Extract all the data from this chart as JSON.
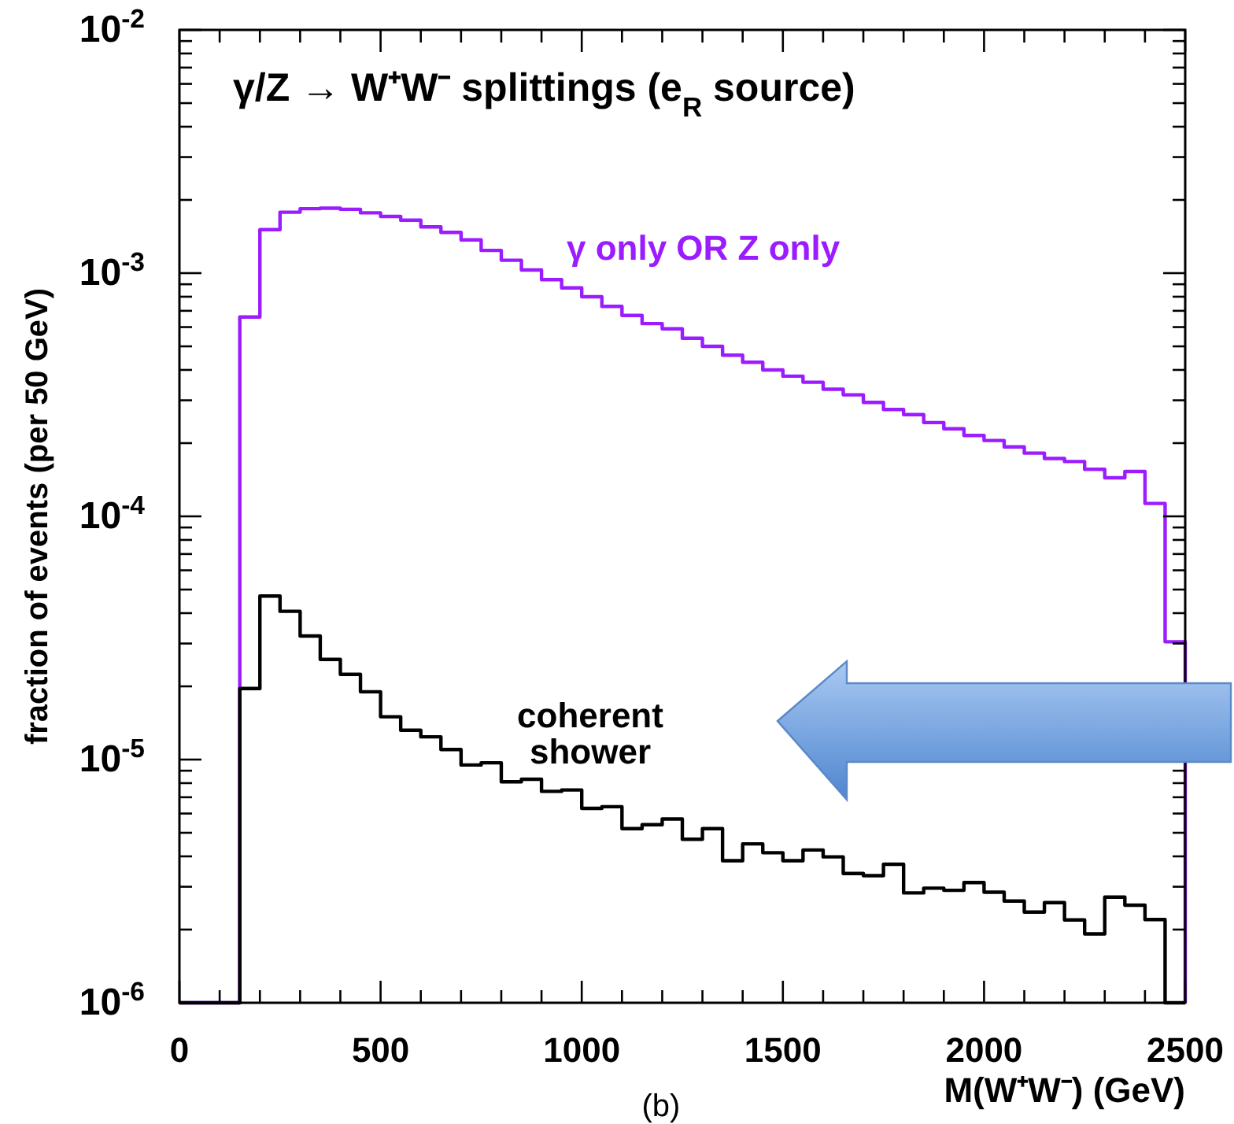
{
  "chart_data": {
    "type": "histogram",
    "title": "γ/Z → W⁺W⁻ splittings (e$_{R}$ source)",
    "xlabel": "M(W⁺W⁻)  (GeV)",
    "ylabel": "fraction of events (per 50 GeV)",
    "annotations": [
      "(b)"
    ],
    "bins": [
      0,
      50,
      100,
      150,
      200,
      250,
      300,
      350,
      400,
      450,
      500,
      550,
      600,
      650,
      700,
      750,
      800,
      850,
      900,
      950,
      1000,
      1050,
      1100,
      1150,
      1200,
      1250,
      1300,
      1350,
      1400,
      1450,
      1500,
      1550,
      1600,
      1650,
      1700,
      1750,
      1800,
      1850,
      1900,
      1950,
      2000,
      2050,
      2100,
      2150,
      2200,
      2250,
      2300,
      2350,
      2400,
      2450,
      2500
    ],
    "series": [
      {
        "name": "γ only OR Z only",
        "color": "#9b1cff",
        "values": [
          1e-06,
          1e-06,
          1e-06,
          0.00066,
          0.00151,
          0.00178,
          0.00184,
          0.00185,
          0.00183,
          0.00177,
          0.00171,
          0.00165,
          0.00155,
          0.00147,
          0.00137,
          0.00124,
          0.00113,
          0.00103,
          0.00094,
          0.00087,
          0.0008,
          0.00073,
          0.00067,
          0.00062,
          0.00059,
          0.00054,
          0.0005,
          0.00046,
          0.00043,
          0.0004,
          0.000377,
          0.000356,
          0.000333,
          0.000316,
          0.000294,
          0.000275,
          0.000262,
          0.000243,
          0.000229,
          0.000215,
          0.000205,
          0.000193,
          0.000182,
          0.000173,
          0.000168,
          0.000156,
          0.000144,
          0.000153,
          0.000113,
          3.05e-05
        ]
      },
      {
        "name": "coherent\nshower",
        "color": "#000000",
        "values": [
          1e-06,
          1e-06,
          1e-06,
          1.96e-05,
          4.7e-05,
          4.07e-05,
          3.22e-05,
          2.58e-05,
          2.24e-05,
          1.9e-05,
          1.5e-05,
          1.32e-05,
          1.24e-05,
          1.1e-05,
          9.5e-06,
          9.7e-06,
          8.1e-06,
          8.3e-06,
          7.4e-06,
          7.5e-06,
          6.3e-06,
          6.4e-06,
          5.2e-06,
          5.4e-06,
          5.7e-06,
          4.7e-06,
          5.2e-06,
          3.84e-06,
          4.5e-06,
          4.14e-06,
          3.84e-06,
          4.25e-06,
          3.98e-06,
          3.4e-06,
          3.33e-06,
          3.71e-06,
          2.83e-06,
          2.96e-06,
          2.9e-06,
          3.12e-06,
          2.85e-06,
          2.62e-06,
          2.36e-06,
          2.58e-06,
          2.19e-06,
          1.92e-06,
          2.72e-06,
          2.52e-06,
          2.2e-06,
          1e-06
        ]
      }
    ],
    "xlim": [
      0,
      2500
    ],
    "xticks": [
      0,
      {
        "value": 100,
        "label": null
      },
      {
        "value": 200,
        "label": null
      },
      {
        "value": 300,
        "label": null
      },
      {
        "value": 400,
        "label": null
      },
      500,
      {
        "value": 600,
        "label": null
      },
      {
        "value": 700,
        "label": null
      },
      {
        "value": 800,
        "label": null
      },
      {
        "value": 900,
        "label": null
      },
      1000,
      {
        "value": 1100,
        "label": null
      },
      {
        "value": 1200,
        "label": null
      },
      {
        "value": 1300,
        "label": null
      },
      {
        "value": 1400,
        "label": null
      },
      1500,
      {
        "value": 1600,
        "label": null
      },
      {
        "value": 1700,
        "label": null
      },
      {
        "value": 1800,
        "label": null
      },
      {
        "value": 1900,
        "label": null
      },
      2000,
      {
        "value": 2100,
        "label": null
      },
      {
        "value": 2200,
        "label": null
      },
      {
        "value": 2300,
        "label": null
      },
      {
        "value": 2400,
        "label": null
      },
      2500
    ],
    "ylim": [
      1e-06,
      0.01
    ],
    "log": true,
    "yticks": [
      {
        "value": 1e-06,
        "label": "10$^{-6}$"
      },
      {
        "value": 2e-06,
        "label": null
      },
      {
        "value": 3e-06,
        "label": null
      },
      {
        "value": 4e-06,
        "label": null
      },
      {
        "value": 5e-06,
        "label": null
      },
      {
        "value": 6e-06,
        "label": null
      },
      {
        "value": 7e-06,
        "label": null
      },
      {
        "value": 8e-06,
        "label": null
      },
      {
        "value": 9e-06,
        "label": null
      },
      {
        "value": 1e-05,
        "label": "10$^{-5}$"
      },
      {
        "value": 2e-05,
        "label": null
      },
      {
        "value": 3e-05,
        "label": null
      },
      {
        "value": 4e-05,
        "label": null
      },
      {
        "value": 5e-05,
        "label": null
      },
      {
        "value": 6e-05,
        "label": null
      },
      {
        "value": 7e-05,
        "label": null
      },
      {
        "value": 8e-05,
        "label": null
      },
      {
        "value": 9e-05,
        "label": null
      },
      {
        "value": 0.0001,
        "label": "10$^{-4}$"
      },
      {
        "value": 0.0002,
        "label": null
      },
      {
        "value": 0.0003,
        "label": null
      },
      {
        "value": 0.0004,
        "label": null
      },
      {
        "value": 0.0005,
        "label": null
      },
      {
        "value": 0.0006,
        "label": null
      },
      {
        "value": 0.0007,
        "label": null
      },
      {
        "value": 0.0008,
        "label": null
      },
      {
        "value": 0.0009,
        "label": null
      },
      {
        "value": 0.001,
        "label": "10$^{-3}$"
      },
      {
        "value": 0.002,
        "label": null
      },
      {
        "value": 0.003,
        "label": null
      },
      {
        "value": 0.004,
        "label": null
      },
      {
        "value": 0.005,
        "label": null
      },
      {
        "value": 0.006,
        "label": null
      },
      {
        "value": 0.007,
        "label": null
      },
      {
        "value": 0.008,
        "label": null
      },
      {
        "value": 0.009,
        "label": null
      },
      {
        "value": 0.01,
        "label": "10$^{-2}$"
      }
    ]
  }
}
